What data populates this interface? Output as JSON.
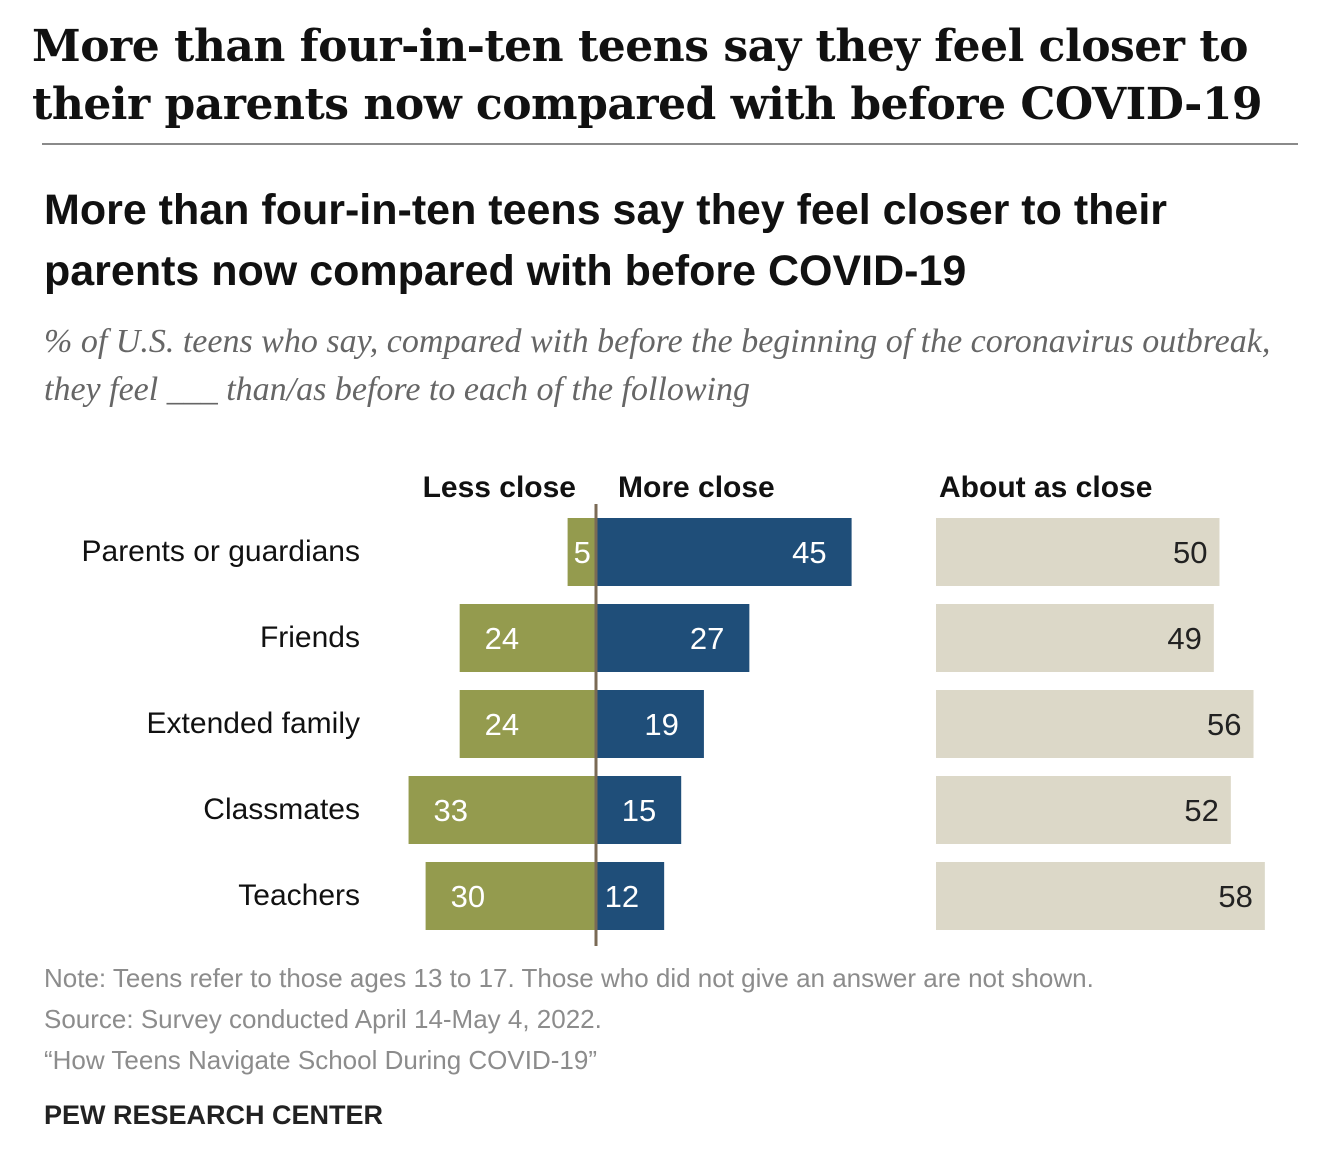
{
  "page": {
    "headline": "More than four-in-ten teens say they feel closer to their parents now compared with before COVID-19"
  },
  "chart_data": {
    "type": "bar",
    "title": "More than four-in-ten teens say they feel closer to their parents now compared with before COVID-19",
    "subtitle": "% of U.S. teens who say, compared with before the beginning of the coronavirus outbreak, they feel ___ than/as before to each of the following",
    "categories": [
      "Parents or guardians",
      "Friends",
      "Extended family",
      "Classmates",
      "Teachers"
    ],
    "series": [
      {
        "name": "Less close",
        "color": "#949b4e",
        "values": [
          5,
          24,
          24,
          33,
          30
        ]
      },
      {
        "name": "More close",
        "color": "#1f4e79",
        "values": [
          45,
          27,
          19,
          15,
          12
        ]
      },
      {
        "name": "About as close",
        "color": "#dcd8c8",
        "values": [
          50,
          49,
          56,
          52,
          58
        ]
      }
    ],
    "label_colors": {
      "on_dark": "#ffffff",
      "on_light": "#222222"
    },
    "axis_color": "#7a6a55",
    "xlabel": "",
    "ylabel": ""
  },
  "notes": {
    "note": "Note: Teens refer to those ages 13 to 17. Those who did not give an answer are not shown.",
    "source": "Source: Survey conducted April 14-May 4, 2022.",
    "report": "“How Teens Navigate School During COVID-19”"
  },
  "brand": "PEW RESEARCH CENTER"
}
